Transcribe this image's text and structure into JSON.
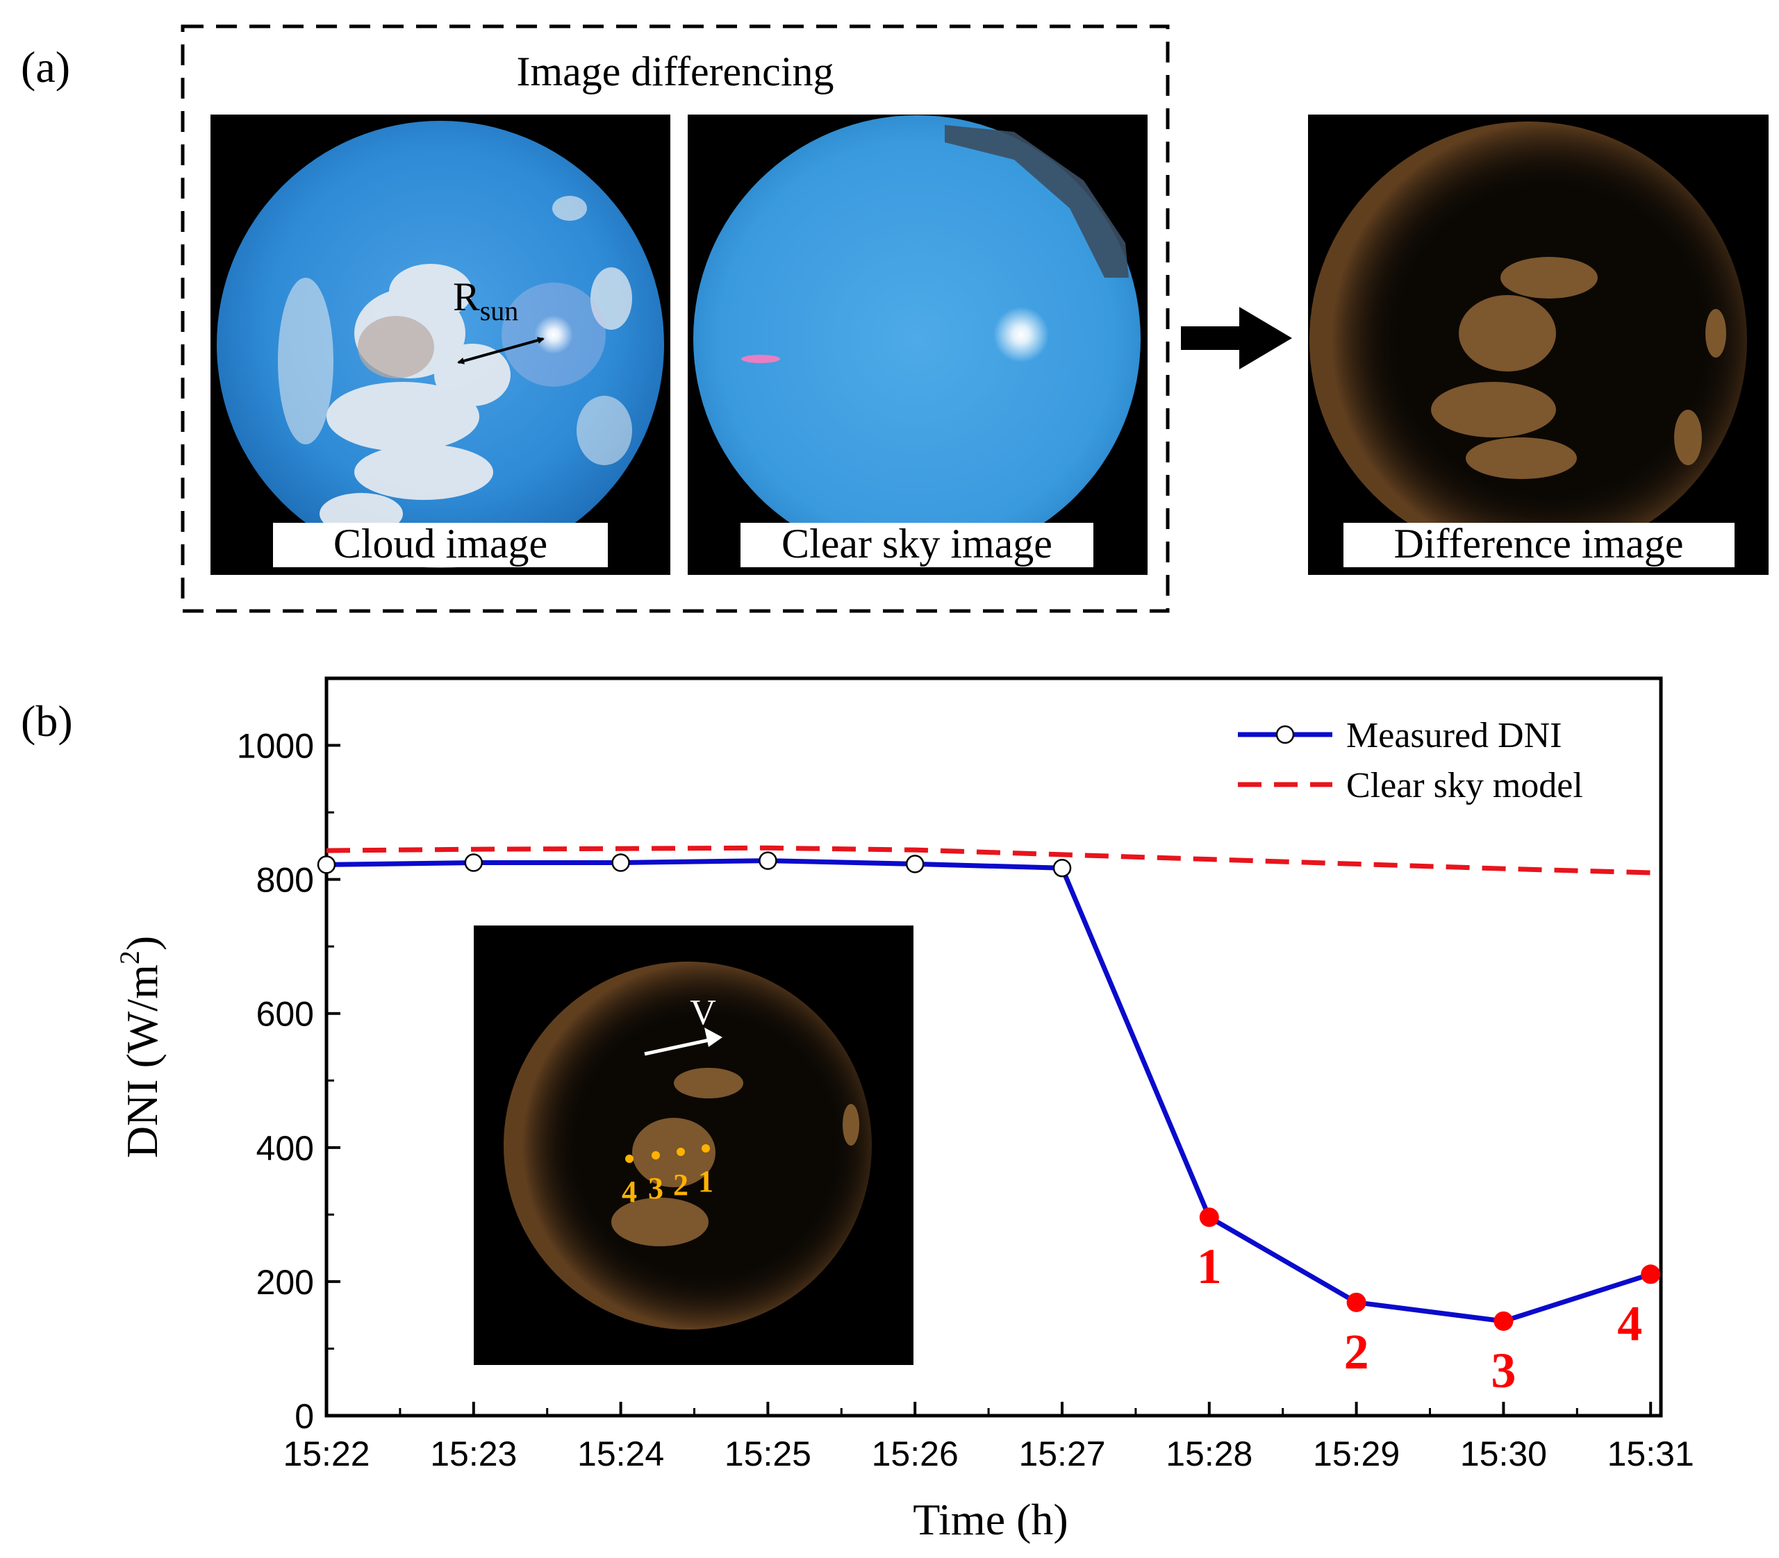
{
  "panel_a": {
    "label": "(a)",
    "group_title": "Image differencing",
    "cloud_caption": "Cloud image",
    "clear_caption": "Clear sky image",
    "difference_caption": "Difference image",
    "rsun_base": "R",
    "rsun_sub": "sun"
  },
  "panel_b": {
    "label": "(b)",
    "inset_velocity_label": "V",
    "inset_points": [
      "4",
      "3",
      "2",
      "1"
    ]
  },
  "colors": {
    "measured": "#0a0acc",
    "clear_sky": "#e8141c",
    "points": "#ff0000",
    "inset_points": "#ffb300"
  },
  "chart_data": {
    "type": "line",
    "xlabel": "Time (h)",
    "ylabel_base": "DNI (W/m",
    "ylabel_sup": "2",
    "ylabel_close": ")",
    "categories": [
      "15:22",
      "15:23",
      "15:24",
      "15:25",
      "15:26",
      "15:27",
      "15:28",
      "15:29",
      "15:30",
      "15:31"
    ],
    "ylim": [
      0,
      1100
    ],
    "yticks": [
      0,
      200,
      400,
      600,
      800,
      1000
    ],
    "series": [
      {
        "name": "Measured DNI",
        "style": "solid line with open circle markers",
        "values": [
          822,
          825,
          825,
          828,
          823,
          817,
          296,
          169,
          141,
          211
        ]
      },
      {
        "name": "Clear sky model",
        "style": "dashed line",
        "values": [
          843,
          845,
          846,
          847,
          844,
          837,
          830,
          823,
          816,
          810
        ]
      }
    ],
    "point_annotations": [
      {
        "label": "1",
        "x": "15:28",
        "y": 296
      },
      {
        "label": "2",
        "x": "15:29",
        "y": 169
      },
      {
        "label": "3",
        "x": "15:30",
        "y": 141
      },
      {
        "label": "4",
        "x": "15:31",
        "y": 211
      }
    ],
    "legend_position": "top-right"
  }
}
